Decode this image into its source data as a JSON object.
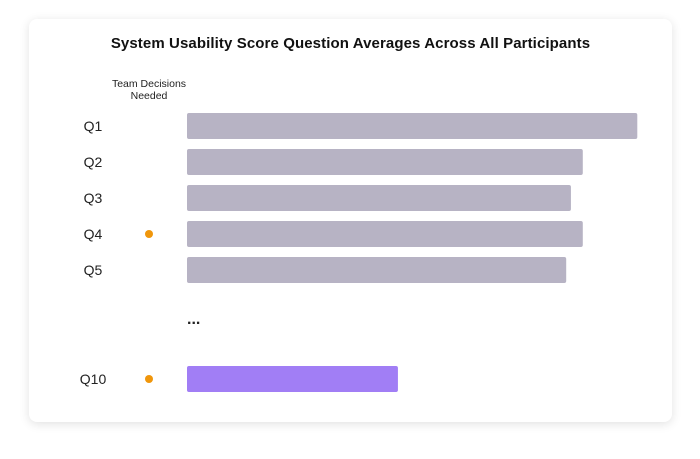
{
  "chart_data": {
    "type": "bar",
    "orientation": "horizontal",
    "title": "System Usability Score Question Averages Across All Participants",
    "column_header": "Team Decisions Needed",
    "categories": [
      "Q1",
      "Q2",
      "Q3",
      "Q4",
      "Q5",
      "Q10"
    ],
    "values": [
      3.8,
      3.34,
      3.24,
      3.34,
      3.2,
      1.78
    ],
    "team_decision_needed": [
      false,
      false,
      false,
      true,
      false,
      true
    ],
    "ellipsis_label": "...",
    "xlim": [
      0,
      4
    ],
    "grid": false,
    "axis_visible": false
  },
  "colors": {
    "bar_default": "#b7b3c4",
    "bar_highlight": "#a17ef5",
    "decision_dot": "#f0960b"
  },
  "highlight_category": "Q10"
}
